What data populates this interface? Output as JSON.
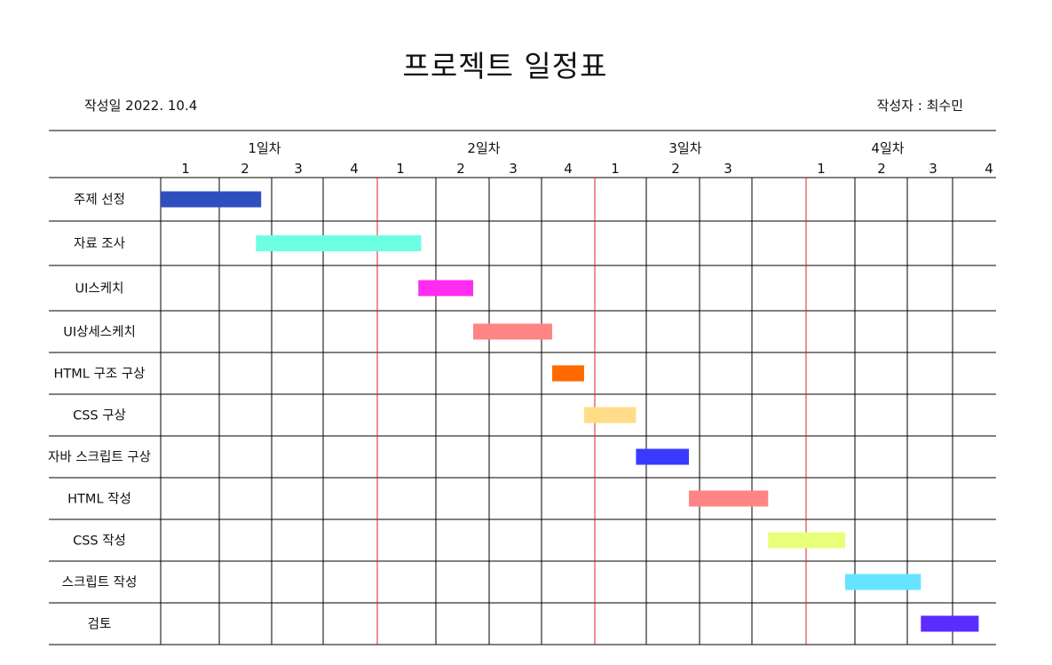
{
  "header": {
    "title": "프로젝트 일정표",
    "created": "작성일 2022. 10.4",
    "author": "작성자 : 최수민"
  },
  "chart_data": {
    "type": "gantt",
    "days": [
      {
        "label": "1일차",
        "slots": [
          "1",
          "2",
          "3",
          "4"
        ]
      },
      {
        "label": "2일차",
        "slots": [
          "1",
          "2",
          "3",
          "4"
        ]
      },
      {
        "label": "3일차",
        "slots": [
          "1",
          "2",
          "3",
          ""
        ]
      },
      {
        "label": "4일차",
        "slots": [
          "1",
          "2",
          "3",
          "4"
        ]
      }
    ],
    "tasks": [
      {
        "name": "주제 선정",
        "start": 0.0,
        "end": 1.8,
        "color": "#2f4fbf"
      },
      {
        "name": "자료 조사",
        "start": 1.7,
        "end": 4.75,
        "color": "#6dffe3"
      },
      {
        "name": "UI스케치",
        "start": 4.7,
        "end": 5.7,
        "color": "#ff2cf0"
      },
      {
        "name": "UI상세스케치",
        "start": 5.7,
        "end": 7.2,
        "color": "#ff8585"
      },
      {
        "name": "HTML 구조 구상",
        "start": 7.2,
        "end": 7.8,
        "color": "#ff6a00"
      },
      {
        "name": "CSS 구상",
        "start": 7.8,
        "end": 8.8,
        "color": "#ffdd88"
      },
      {
        "name": "자바 스크립트 구상",
        "start": 8.8,
        "end": 9.8,
        "color": "#3a3aff"
      },
      {
        "name": "HTML 작성",
        "start": 9.8,
        "end": 11.3,
        "color": "#ff8585"
      },
      {
        "name": "CSS 작성",
        "start": 11.3,
        "end": 12.8,
        "color": "#e8ff7a"
      },
      {
        "name": "스크립트 작성",
        "start": 12.8,
        "end": 14.3,
        "color": "#66e4ff"
      },
      {
        "name": "검토",
        "start": 14.3,
        "end": 15.6,
        "color": "#5a2cff"
      }
    ],
    "grid_color": "#000000",
    "day_divider_color": "#e02020"
  }
}
